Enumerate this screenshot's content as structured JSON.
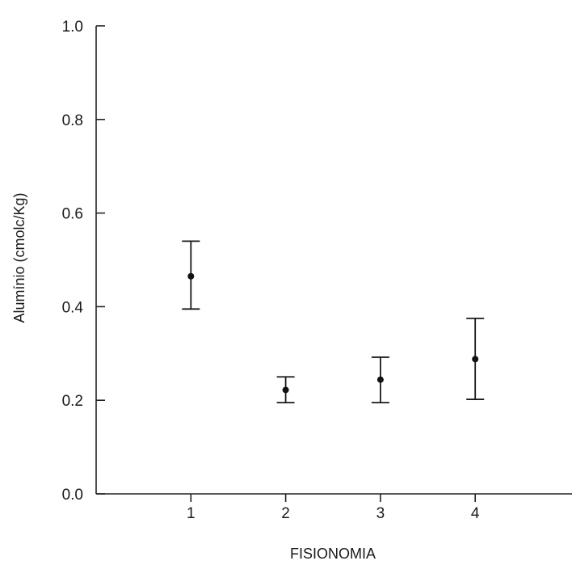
{
  "chart_data": {
    "type": "scatter",
    "title": "",
    "xlabel": "FISIONOMIA",
    "ylabel": "Alumínio (cmolc/Kg)",
    "xlim": [
      0,
      5
    ],
    "ylim": [
      0,
      1
    ],
    "x_ticks": [
      "1",
      "2",
      "3",
      "4"
    ],
    "y_ticks": [
      "0.0",
      "0.2",
      "0.4",
      "0.6",
      "0.8",
      "1.0"
    ],
    "grid": false,
    "series": [
      {
        "points": [
          {
            "x": 1,
            "y": 0.465,
            "err_low": 0.395,
            "err_high": 0.54
          },
          {
            "x": 2,
            "y": 0.222,
            "err_low": 0.195,
            "err_high": 0.25
          },
          {
            "x": 3,
            "y": 0.244,
            "err_low": 0.195,
            "err_high": 0.292
          },
          {
            "x": 4,
            "y": 0.288,
            "err_low": 0.202,
            "err_high": 0.375
          }
        ]
      }
    ]
  }
}
